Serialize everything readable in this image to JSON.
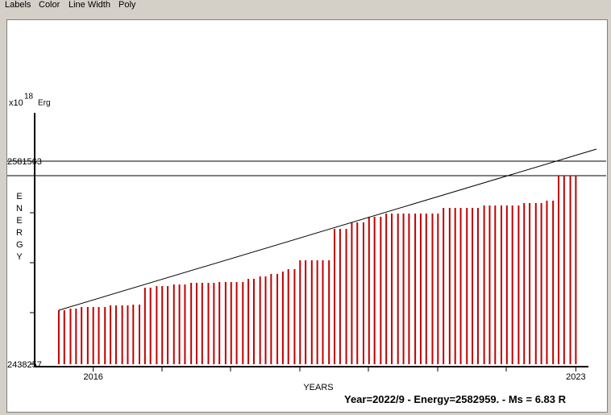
{
  "menu": [
    "Labels",
    "Color",
    "Line Width",
    "Poly"
  ],
  "status": "Year=2022/9 - Energy=2582959. - Ms = 6.83 R",
  "chart_data": {
    "type": "bar",
    "unit_prefix": "x10",
    "unit_exponent": "18",
    "unit": "Erg",
    "y_label": "ENERGY",
    "x_label": "YEARS",
    "color": "#c00000",
    "xlim": [
      2015.15,
      2023.44
    ],
    "xticks": [
      2016,
      2023
    ],
    "ylim": [
      2438257,
      2615691
    ],
    "yticks": [
      2438257,
      2581563
    ],
    "hlines": [
      2581563,
      2571333
    ],
    "trend_line": {
      "x": [
        2015.5,
        2023.3
      ],
      "values": [
        2476360,
        2590100
      ]
    },
    "x": [
      2015.5,
      2015.58,
      2015.67,
      2015.75,
      2015.83,
      2015.92,
      2016,
      2016.08,
      2016.17,
      2016.25,
      2016.33,
      2016.42,
      2016.5,
      2016.58,
      2016.67,
      2016.75,
      2016.83,
      2016.92,
      2017,
      2017.08,
      2017.17,
      2017.25,
      2017.33,
      2017.42,
      2017.5,
      2017.58,
      2017.67,
      2017.75,
      2017.83,
      2017.92,
      2018,
      2018.08,
      2018.17,
      2018.25,
      2018.33,
      2018.42,
      2018.5,
      2018.58,
      2018.67,
      2018.75,
      2018.83,
      2018.92,
      2019,
      2019.08,
      2019.17,
      2019.25,
      2019.33,
      2019.42,
      2019.5,
      2019.58,
      2019.67,
      2019.75,
      2019.83,
      2019.92,
      2020,
      2020.08,
      2020.17,
      2020.25,
      2020.33,
      2020.42,
      2020.5,
      2020.58,
      2020.67,
      2020.75,
      2020.83,
      2020.92,
      2021,
      2021.08,
      2021.17,
      2021.25,
      2021.33,
      2021.42,
      2021.5,
      2021.58,
      2021.67,
      2021.75,
      2021.83,
      2021.92,
      2022,
      2022.08,
      2022.17,
      2022.25,
      2022.33,
      2022.42,
      2022.5,
      2022.58,
      2022.67,
      2022.75,
      2022.83,
      2022.92,
      2023
    ],
    "values": [
      2476360,
      2476360,
      2477497,
      2477497,
      2478635,
      2478635,
      2478635,
      2478635,
      2478635,
      2479772,
      2479772,
      2479772,
      2479772,
      2480341,
      2480341,
      2492284,
      2492284,
      2493421,
      2493421,
      2493421,
      2494558,
      2494558,
      2494558,
      2495696,
      2495696,
      2495696,
      2495696,
      2495696,
      2496264,
      2496264,
      2496264,
      2496264,
      2496264,
      2498539,
      2498539,
      2500245,
      2500245,
      2501951,
      2501951,
      2503658,
      2505364,
      2505364,
      2511619,
      2511619,
      2511619,
      2511619,
      2511619,
      2511619,
      2533799,
      2533799,
      2533799,
      2538348,
      2538348,
      2538348,
      2542329,
      2542329,
      2542329,
      2544604,
      2544604,
      2544604,
      2544604,
      2544604,
      2544604,
      2544604,
      2544604,
      2544604,
      2544604,
      2548585,
      2548585,
      2548585,
      2548585,
      2548585,
      2548585,
      2548585,
      2550291,
      2550291,
      2550291,
      2550291,
      2550291,
      2550291,
      2550291,
      2551997,
      2551997,
      2551997,
      2551997,
      2553703,
      2553703,
      2571333,
      2571333,
      2571333,
      2571333
    ]
  }
}
